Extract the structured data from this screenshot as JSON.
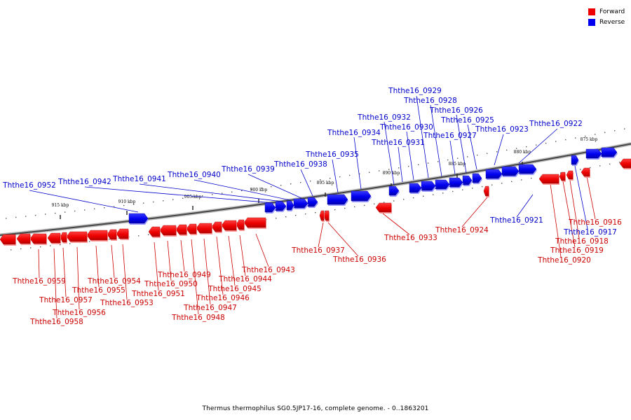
{
  "legend": [
    {
      "label": "Forward",
      "color": "#ee0000"
    },
    {
      "label": "Reverse",
      "color": "#0000ee"
    }
  ],
  "caption": "Thermus thermophilus SG0.5JP17-16, complete genome. - 0..1863201",
  "ticks": [
    {
      "label": "875 kbp",
      "kbp": 875
    },
    {
      "label": "880 kbp",
      "kbp": 880
    },
    {
      "label": "885 kbp",
      "kbp": 885
    },
    {
      "label": "890 kbp",
      "kbp": 890
    },
    {
      "label": "895 kbp",
      "kbp": 895
    },
    {
      "label": "900 kbp",
      "kbp": 900
    },
    {
      "label": "905 kbp",
      "kbp": 905
    },
    {
      "label": "910 kbp",
      "kbp": 910
    },
    {
      "label": "915 kbp",
      "kbp": 915
    }
  ],
  "genes": [
    {
      "name": "Ththe16_0916",
      "strand": "forward"
    },
    {
      "name": "Ththe16_0917",
      "strand": "reverse"
    },
    {
      "name": "Ththe16_0918",
      "strand": "forward"
    },
    {
      "name": "Ththe16_0919",
      "strand": "forward"
    },
    {
      "name": "Ththe16_0920",
      "strand": "forward"
    },
    {
      "name": "Ththe16_0921",
      "strand": "reverse"
    },
    {
      "name": "Ththe16_0922",
      "strand": "reverse"
    },
    {
      "name": "Ththe16_0923",
      "strand": "reverse"
    },
    {
      "name": "Ththe16_0924",
      "strand": "forward"
    },
    {
      "name": "Ththe16_0925",
      "strand": "reverse"
    },
    {
      "name": "Ththe16_0926",
      "strand": "reverse"
    },
    {
      "name": "Ththe16_0927",
      "strand": "reverse"
    },
    {
      "name": "Ththe16_0928",
      "strand": "reverse"
    },
    {
      "name": "Ththe16_0929",
      "strand": "reverse"
    },
    {
      "name": "Ththe16_0930",
      "strand": "reverse"
    },
    {
      "name": "Ththe16_0931",
      "strand": "reverse"
    },
    {
      "name": "Ththe16_0932",
      "strand": "reverse"
    },
    {
      "name": "Ththe16_0933",
      "strand": "forward"
    },
    {
      "name": "Ththe16_0934",
      "strand": "reverse"
    },
    {
      "name": "Ththe16_0935",
      "strand": "reverse"
    },
    {
      "name": "Ththe16_0936",
      "strand": "forward"
    },
    {
      "name": "Ththe16_0937",
      "strand": "forward"
    },
    {
      "name": "Ththe16_0938",
      "strand": "reverse"
    },
    {
      "name": "Ththe16_0939",
      "strand": "reverse"
    },
    {
      "name": "Ththe16_0940",
      "strand": "reverse"
    },
    {
      "name": "Ththe16_0941",
      "strand": "reverse"
    },
    {
      "name": "Ththe16_0942",
      "strand": "reverse"
    },
    {
      "name": "Ththe16_0943",
      "strand": "forward"
    },
    {
      "name": "Ththe16_0944",
      "strand": "forward"
    },
    {
      "name": "Ththe16_0945",
      "strand": "forward"
    },
    {
      "name": "Ththe16_0946",
      "strand": "forward"
    },
    {
      "name": "Ththe16_0947",
      "strand": "forward"
    },
    {
      "name": "Ththe16_0948",
      "strand": "forward"
    },
    {
      "name": "Ththe16_0949",
      "strand": "forward"
    },
    {
      "name": "Ththe16_0950",
      "strand": "forward"
    },
    {
      "name": "Ththe16_0951",
      "strand": "forward"
    },
    {
      "name": "Ththe16_0952",
      "strand": "reverse"
    },
    {
      "name": "Ththe16_0953",
      "strand": "forward"
    },
    {
      "name": "Ththe16_0954",
      "strand": "forward"
    },
    {
      "name": "Ththe16_0955",
      "strand": "forward"
    },
    {
      "name": "Ththe16_0956",
      "strand": "forward"
    },
    {
      "name": "Ththe16_0957",
      "strand": "forward"
    },
    {
      "name": "Ththe16_0958",
      "strand": "forward"
    },
    {
      "name": "Ththe16_0959",
      "strand": "forward"
    }
  ]
}
